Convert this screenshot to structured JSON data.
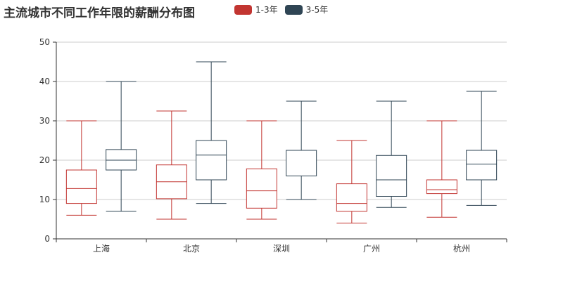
{
  "title": "主流城市不同工作年限的薪酬分布图",
  "colors": {
    "series0": "#c23531",
    "series1": "#2f4554",
    "axis": "#333333",
    "grid": "#cccccc"
  },
  "chart_data": {
    "type": "boxplot",
    "title": "主流城市不同工作年限的薪酬分布图",
    "categories": [
      "上海",
      "北京",
      "深圳",
      "广州",
      "杭州"
    ],
    "ylim": [
      0,
      50
    ],
    "yticks": [
      "0",
      "10",
      "20",
      "30",
      "40",
      "50"
    ],
    "grid": true,
    "legend_position": "top",
    "series": [
      {
        "name": "1-3年",
        "color": "#c23531",
        "boxes": [
          {
            "min": 6,
            "q1": 9,
            "median": 12.8,
            "q3": 17.5,
            "max": 30
          },
          {
            "min": 5,
            "q1": 10.2,
            "median": 14.5,
            "q3": 18.8,
            "max": 32.5
          },
          {
            "min": 5,
            "q1": 7.8,
            "median": 12.2,
            "q3": 17.8,
            "max": 30
          },
          {
            "min": 4,
            "q1": 7,
            "median": 9,
            "q3": 14,
            "max": 25
          },
          {
            "min": 5.5,
            "q1": 11.5,
            "median": 12.5,
            "q3": 15,
            "max": 30
          }
        ]
      },
      {
        "name": "3-5年",
        "color": "#2f4554",
        "boxes": [
          {
            "min": 7,
            "q1": 17.5,
            "median": 20,
            "q3": 22.7,
            "max": 40
          },
          {
            "min": 9,
            "q1": 15,
            "median": 21.3,
            "q3": 25,
            "max": 45
          },
          {
            "min": 10,
            "q1": 16,
            "median": 22.5,
            "q3": 22.5,
            "max": 35
          },
          {
            "min": 8,
            "q1": 10.8,
            "median": 15,
            "q3": 21.2,
            "max": 35
          },
          {
            "min": 8.5,
            "q1": 15,
            "median": 19,
            "q3": 22.5,
            "max": 37.5
          }
        ]
      }
    ]
  }
}
